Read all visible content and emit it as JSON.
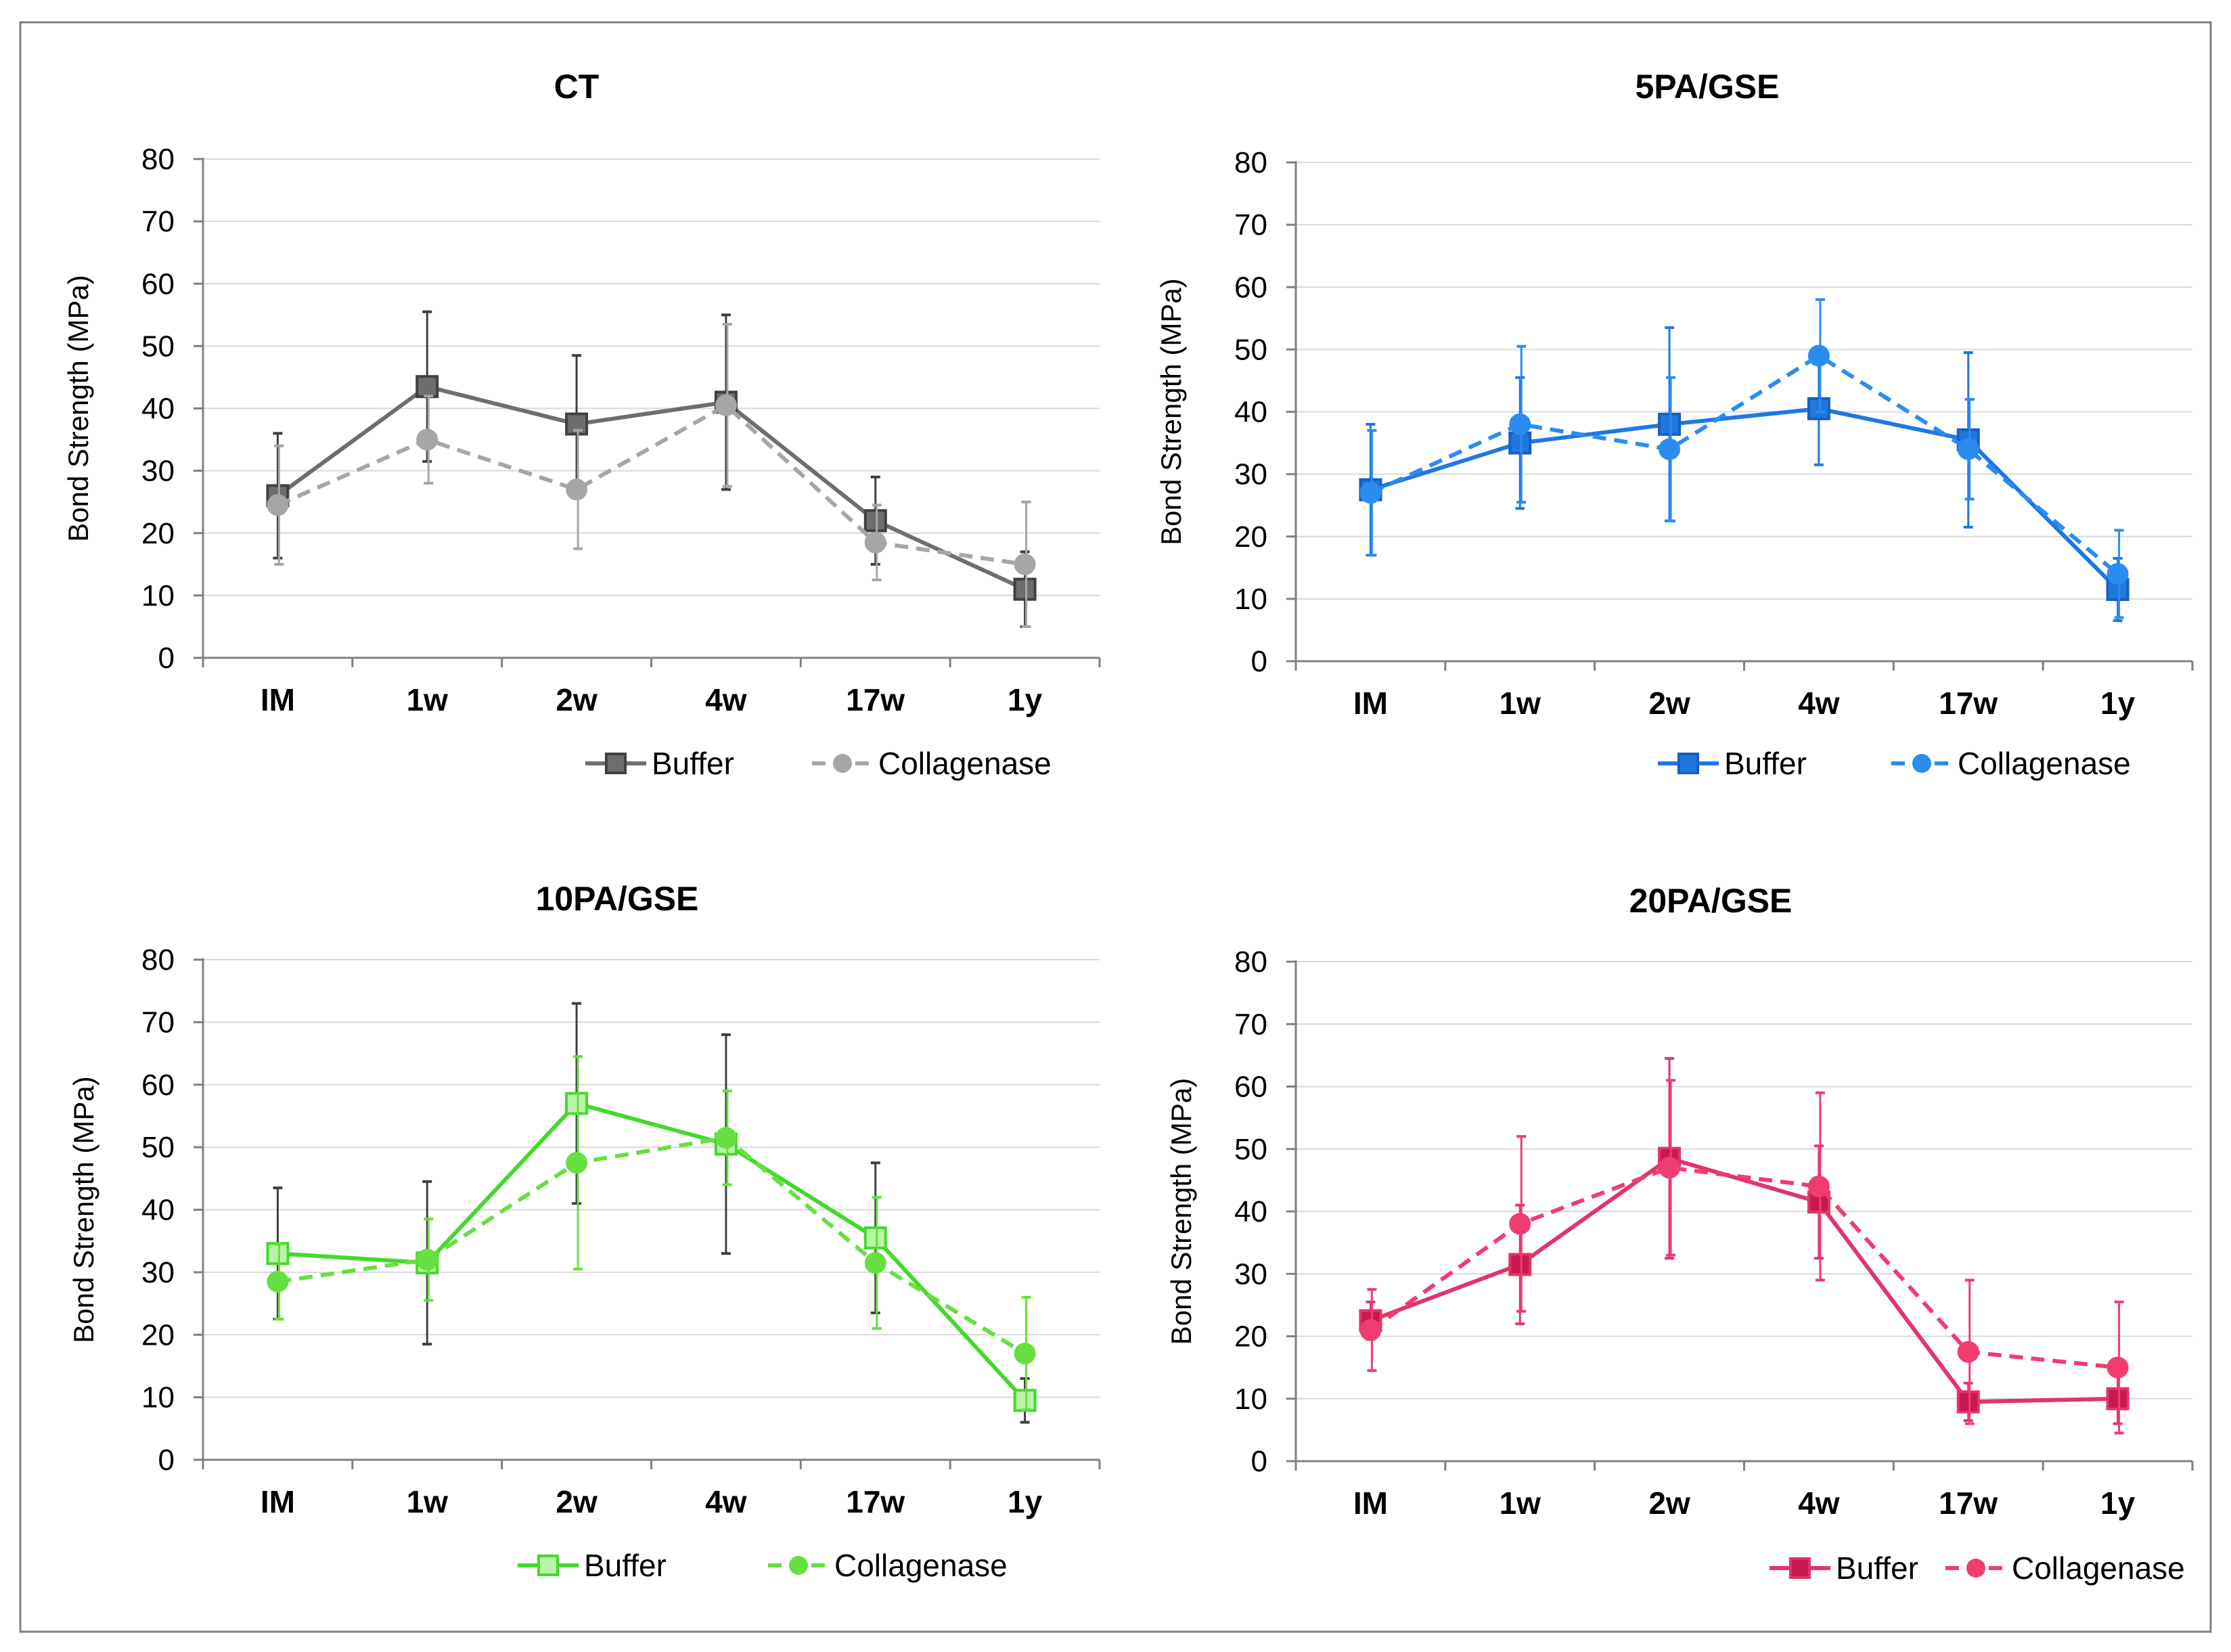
{
  "chart_data": [
    {
      "type": "line",
      "title": "CT",
      "ylabel": "Bond Strength (MPa)",
      "xlabel": "",
      "ylim": [
        0,
        80
      ],
      "yticks": [
        0,
        10,
        20,
        30,
        40,
        50,
        60,
        70,
        80
      ],
      "categories": [
        "IM",
        "1w",
        "2w",
        "4w",
        "17w",
        "1y"
      ],
      "legend_position": "bottom-right",
      "series": [
        {
          "name": "Buffer",
          "color": "#6e6e6e",
          "dashed": false,
          "marker": "square",
          "values": [
            26,
            43.5,
            37.5,
            41,
            22,
            11
          ],
          "errors": [
            10,
            12,
            11,
            14,
            7,
            6
          ]
        },
        {
          "name": "Collagenase",
          "color": "#a6a6a6",
          "dashed": true,
          "marker": "circle",
          "values": [
            24.5,
            35,
            27,
            40.5,
            18.5,
            15
          ],
          "errors": [
            9.5,
            7,
            9.5,
            13,
            6,
            10
          ]
        }
      ]
    },
    {
      "type": "line",
      "title": "5PA/GSE",
      "ylabel": "Bond Strength (MPa)",
      "xlabel": "",
      "ylim": [
        0,
        80
      ],
      "yticks": [
        0,
        10,
        20,
        30,
        40,
        50,
        60,
        70,
        80
      ],
      "categories": [
        "IM",
        "1w",
        "2w",
        "4w",
        "17w",
        "1y"
      ],
      "legend_position": "bottom-right",
      "series": [
        {
          "name": "Buffer",
          "color": "#1f78e0",
          "dashed": false,
          "marker": "square",
          "values": [
            27.5,
            35,
            38,
            40.5,
            35.5,
            11.5
          ],
          "errors": [
            10.5,
            10.5,
            15.5,
            9,
            14,
            5
          ]
        },
        {
          "name": "Collagenase",
          "color": "#2b8cf0",
          "dashed": true,
          "marker": "circle",
          "values": [
            27,
            38,
            34,
            49,
            34,
            14
          ],
          "errors": [
            10,
            12.5,
            11.5,
            9,
            8,
            7
          ]
        }
      ]
    },
    {
      "type": "line",
      "title": "10PA/GSE",
      "ylabel": "Bond Strength (MPa)",
      "xlabel": "",
      "ylim": [
        0,
        80
      ],
      "yticks": [
        0,
        10,
        20,
        30,
        40,
        50,
        60,
        70,
        80
      ],
      "categories": [
        "IM",
        "1w",
        "2w",
        "4w",
        "17w",
        "1y"
      ],
      "legend_position": "bottom-center",
      "series": [
        {
          "name": "Buffer",
          "color": "#44d92c",
          "dashed": false,
          "marker": "square-open",
          "values": [
            33,
            31.5,
            57,
            50.5,
            35.5,
            9.5
          ],
          "errors": [
            10.5,
            13,
            16,
            17.5,
            12,
            3.5
          ]
        },
        {
          "name": "Collagenase",
          "color": "#66e03f",
          "dashed": true,
          "marker": "circle",
          "values": [
            28.5,
            32,
            47.5,
            51.5,
            31.5,
            17
          ],
          "errors": [
            6,
            6.5,
            17,
            7.5,
            10.5,
            9
          ]
        }
      ]
    },
    {
      "type": "line",
      "title": "20PA/GSE",
      "ylabel": "Bond Strength (MPa)",
      "xlabel": "",
      "ylim": [
        0,
        80
      ],
      "yticks": [
        0,
        10,
        20,
        30,
        40,
        50,
        60,
        70,
        80
      ],
      "categories": [
        "IM",
        "1w",
        "2w",
        "4w",
        "17w",
        "1y"
      ],
      "legend_position": "bottom-right",
      "series": [
        {
          "name": "Buffer",
          "color": "#e0356a",
          "dashed": false,
          "marker": "square-open",
          "values": [
            22.5,
            31.5,
            48.5,
            41.5,
            9.5,
            10
          ],
          "errors": [
            3,
            9.5,
            16,
            9,
            3,
            4
          ]
        },
        {
          "name": "Collagenase",
          "color": "#f03c6e",
          "dashed": true,
          "marker": "circle",
          "values": [
            21,
            38,
            47,
            44,
            17.5,
            15
          ],
          "errors": [
            6.5,
            14,
            14,
            15,
            11.5,
            10.5
          ]
        }
      ]
    }
  ]
}
